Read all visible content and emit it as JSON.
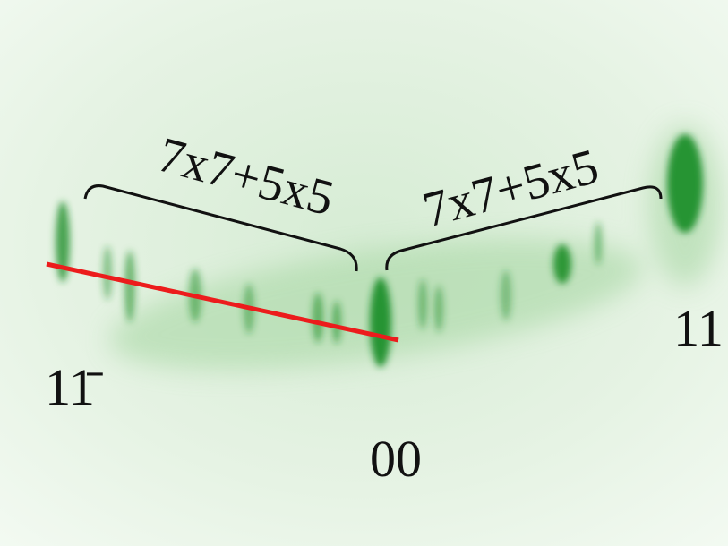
{
  "annotations": {
    "left_group": "7x7+5x5",
    "right_group": "7x7+5x5"
  },
  "spots": {
    "left": "11̄",
    "center": "00",
    "right": "11"
  }
}
